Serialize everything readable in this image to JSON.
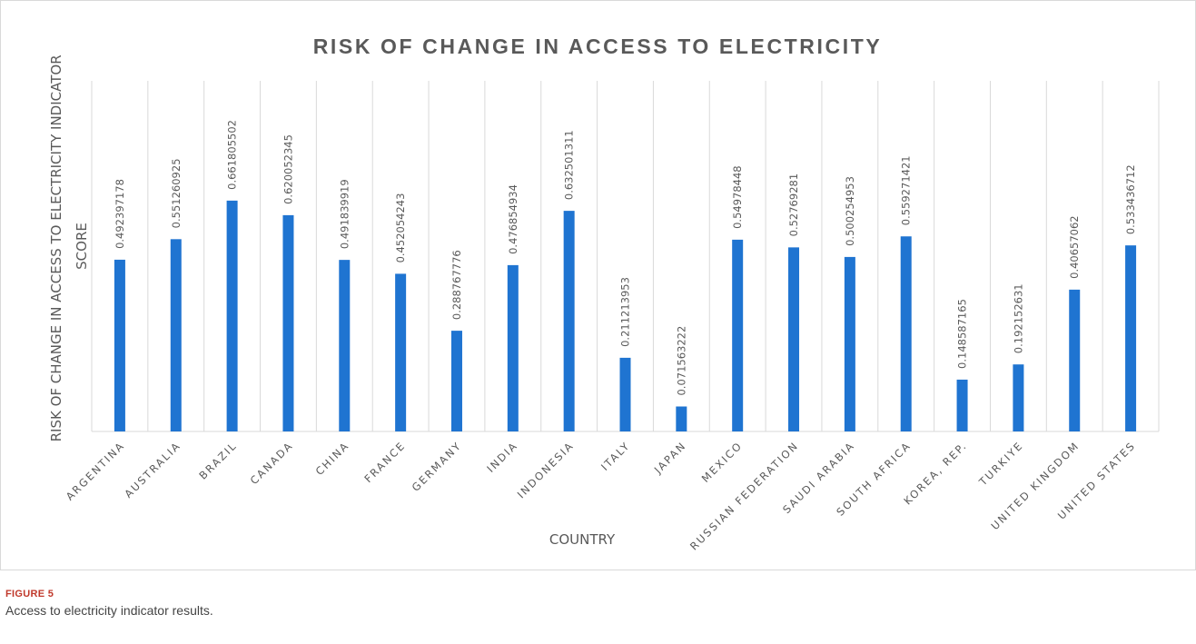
{
  "figure": {
    "label": "FIGURE 5",
    "caption": "Access to electricity indicator results."
  },
  "colors": {
    "bar": "#1f74d1",
    "grid": "#d9d9d9",
    "text": "#595959",
    "caption_label": "#c0392b"
  },
  "chart_data": {
    "type": "bar",
    "title": "RISK OF CHANGE IN ACCESS TO ELECTRICITY",
    "xlabel": "COUNTRY",
    "ylabel": [
      "RISK OF CHANGE IN ACCESS TO ELECTRICITY INDICATOR",
      "SCORE"
    ],
    "categories": [
      "ARGENTINA",
      "AUSTRALIA",
      "BRAZIL",
      "CANADA",
      "CHINA",
      "FRANCE",
      "GERMANY",
      "INDIA",
      "INDONESIA",
      "ITALY",
      "JAPAN",
      "MEXICO",
      "RUSSIAN FEDERATION",
      "SAUDI ARABIA",
      "SOUTH AFRICA",
      "KOREA, REP.",
      "TURKIYE",
      "UNITED KINGDOM",
      "UNITED STATES"
    ],
    "values": [
      0.492397178,
      0.551260925,
      0.661805502,
      0.620052345,
      0.491839919,
      0.452054243,
      0.288767776,
      0.476854934,
      0.632501311,
      0.211213953,
      0.071563222,
      0.54978448,
      0.52769281,
      0.500254953,
      0.559271421,
      0.148587165,
      0.192152631,
      0.40657062,
      0.533436712
    ],
    "value_labels": [
      "0.492397178",
      "0.551260925",
      "0.661805502",
      "0.620052345",
      "0.491839919",
      "0.452054243",
      "0.288767776",
      "0.476854934",
      "0.632501311",
      "0.211213953",
      "0.071563222",
      "0.54978448",
      "0.52769281",
      "0.500254953",
      "0.559271421",
      "0.148587165",
      "0.192152631",
      "0.40657062",
      "0.533436712"
    ],
    "ylim": [
      0,
      1
    ],
    "grid": "vertical",
    "legend": "none",
    "data_labels": "rotated above bars"
  }
}
